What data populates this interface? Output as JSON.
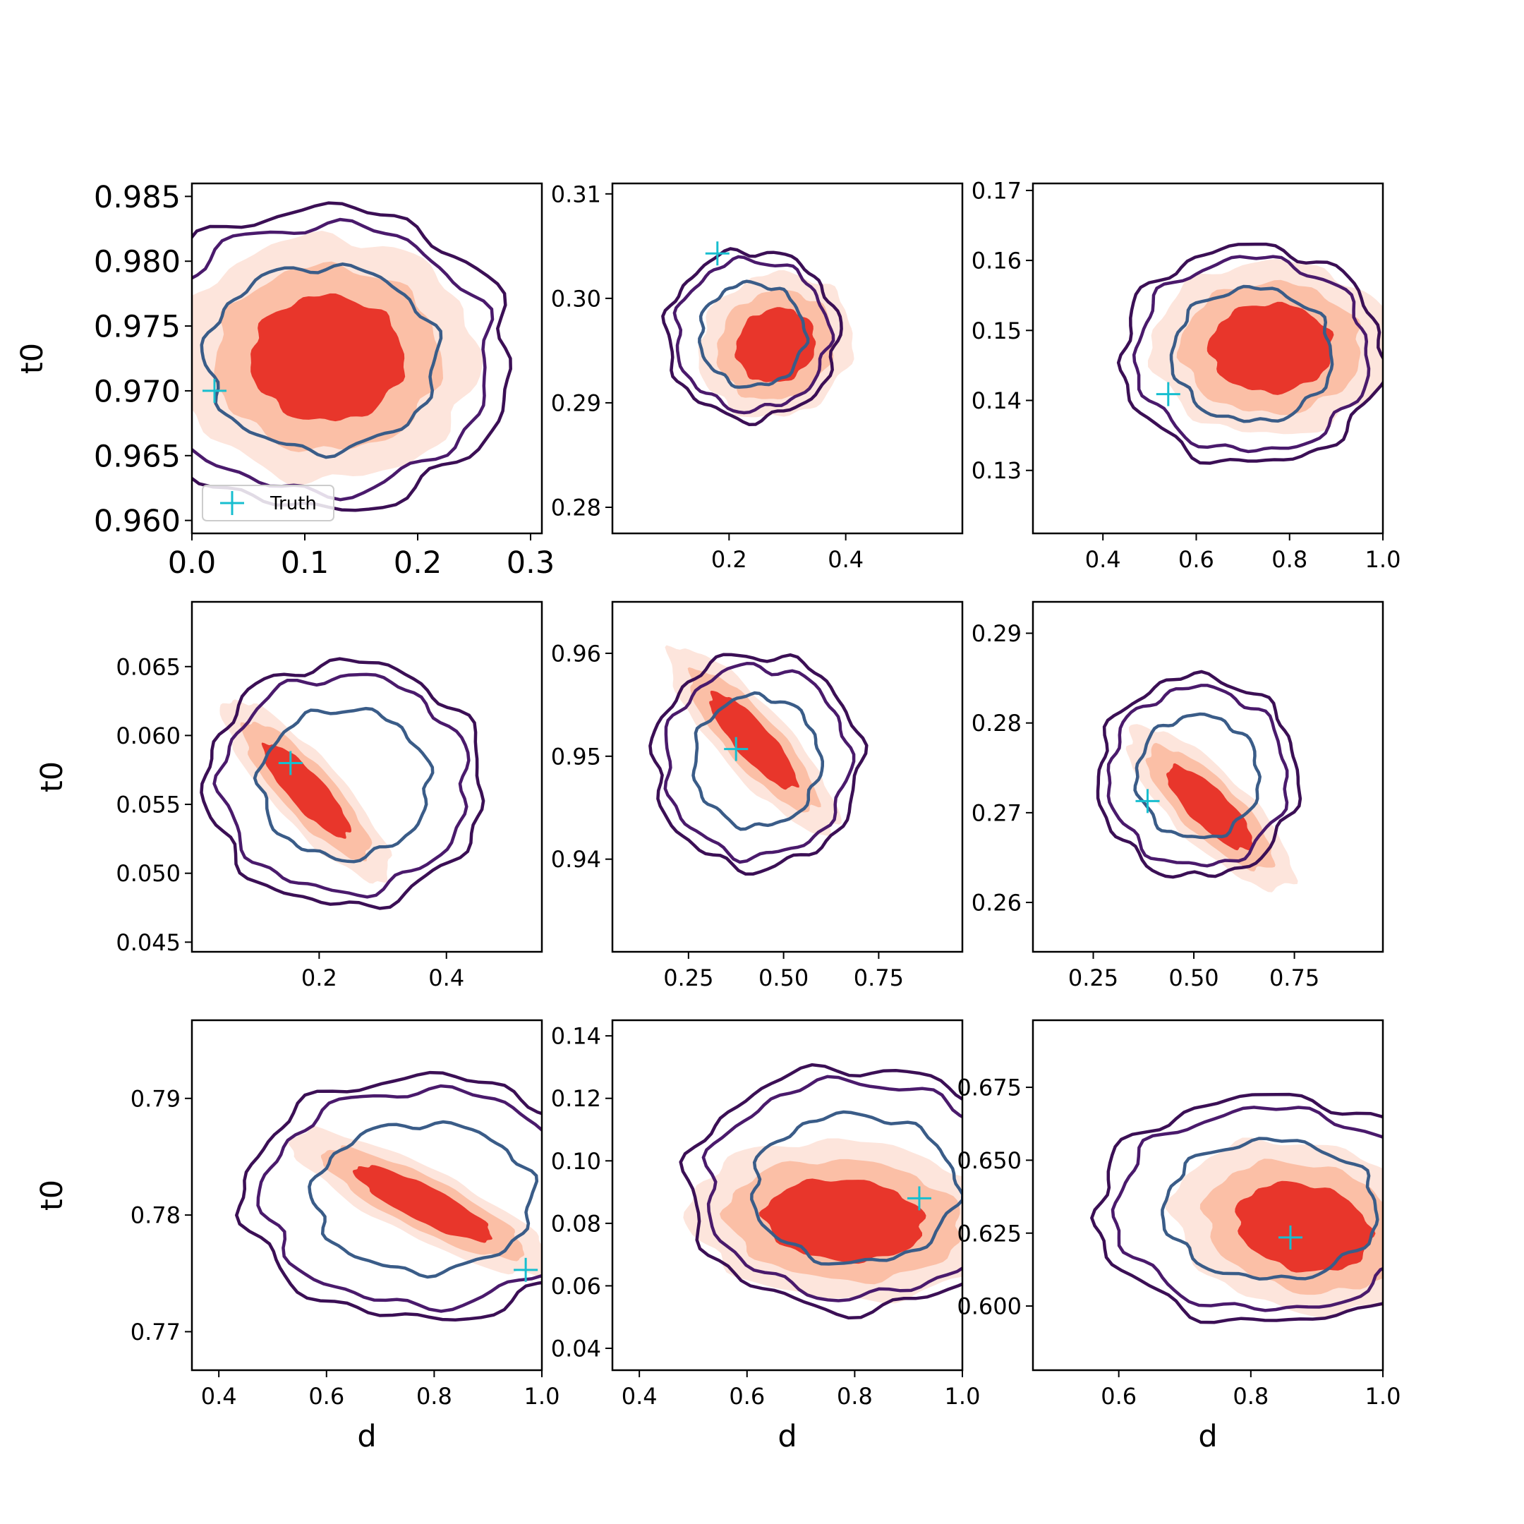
{
  "legend": {
    "label": "Truth",
    "placement": "lower-left",
    "panel": 0
  },
  "colors": {
    "fill_outer": "#fde5dc",
    "fill_mid": "#fbbfa6",
    "fill_inner": "#e8362b",
    "contour_outer": "#3b0f55",
    "contour_mid": "#4a1a6c",
    "contour_inner": "#3a5c88",
    "truth": "#17becf"
  },
  "chart_data": [
    {
      "type": "contour",
      "xlabel": "",
      "ylabel": "t0",
      "xlim": [
        0.0,
        0.31
      ],
      "ylim": [
        0.959,
        0.986
      ],
      "xticks": [
        {
          "v": 0.0,
          "t": "0.0"
        },
        {
          "v": 0.1,
          "t": "0.1"
        },
        {
          "v": 0.2,
          "t": "0.2"
        },
        {
          "v": 0.3,
          "t": "0.3"
        }
      ],
      "yticks": [
        {
          "v": 0.96,
          "t": "0.960"
        },
        {
          "v": 0.965,
          "t": "0.965"
        },
        {
          "v": 0.97,
          "t": "0.970"
        },
        {
          "v": 0.975,
          "t": "0.975"
        },
        {
          "v": 0.98,
          "t": "0.980"
        },
        {
          "v": 0.985,
          "t": "0.985"
        }
      ],
      "big_ticks": true,
      "truth": [
        0.02,
        0.97
      ],
      "fill": {
        "cx": 0.12,
        "cy": 0.9725,
        "sx": 0.08,
        "sy": 0.0057,
        "corr": 0.0
      },
      "contour": {
        "cx": 0.115,
        "cy": 0.9725,
        "sx": 0.108,
        "sy": 0.0075,
        "corr": 0.0
      }
    },
    {
      "type": "contour",
      "xlabel": "",
      "ylabel": "",
      "xlim": [
        0.0,
        0.6
      ],
      "ylim": [
        0.2775,
        0.311
      ],
      "xticks": [
        {
          "v": 0.2,
          "t": "0.2"
        },
        {
          "v": 0.4,
          "t": "0.4"
        }
      ],
      "yticks": [
        {
          "v": 0.28,
          "t": "0.28"
        },
        {
          "v": 0.29,
          "t": "0.29"
        },
        {
          "v": 0.3,
          "t": "0.30"
        },
        {
          "v": 0.31,
          "t": "0.31"
        }
      ],
      "truth": [
        0.18,
        0.3043
      ],
      "fill": {
        "cx": 0.28,
        "cy": 0.2955,
        "sx": 0.08,
        "sy": 0.0042,
        "corr": 0.1
      },
      "contour": {
        "cx": 0.24,
        "cy": 0.2965,
        "sx": 0.095,
        "sy": 0.0052,
        "corr": 0.0
      }
    },
    {
      "type": "contour",
      "xlabel": "",
      "ylabel": "",
      "xlim": [
        0.25,
        1.0
      ],
      "ylim": [
        0.121,
        0.171
      ],
      "xticks": [
        {
          "v": 0.4,
          "t": "0.4"
        },
        {
          "v": 0.6,
          "t": "0.6"
        },
        {
          "v": 0.8,
          "t": "0.8"
        },
        {
          "v": 1.0,
          "t": "1.0"
        }
      ],
      "yticks": [
        {
          "v": 0.13,
          "t": "0.13"
        },
        {
          "v": 0.14,
          "t": "0.14"
        },
        {
          "v": 0.15,
          "t": "0.15"
        },
        {
          "v": 0.16,
          "t": "0.16"
        },
        {
          "v": 0.17,
          "t": "0.17"
        }
      ],
      "truth": [
        0.54,
        0.1409
      ],
      "fill": {
        "cx": 0.76,
        "cy": 0.1475,
        "sx": 0.155,
        "sy": 0.0075,
        "corr": 0.0
      },
      "contour": {
        "cx": 0.72,
        "cy": 0.1465,
        "sx": 0.18,
        "sy": 0.01,
        "corr": 0.0
      }
    },
    {
      "type": "contour",
      "xlabel": "",
      "ylabel": "t0",
      "xlim": [
        0.0,
        0.55
      ],
      "ylim": [
        0.0443,
        0.0697
      ],
      "xticks": [
        {
          "v": 0.2,
          "t": "0.2"
        },
        {
          "v": 0.4,
          "t": "0.4"
        }
      ],
      "yticks": [
        {
          "v": 0.045,
          "t": "0.045"
        },
        {
          "v": 0.05,
          "t": "0.050"
        },
        {
          "v": 0.055,
          "t": "0.055"
        },
        {
          "v": 0.06,
          "t": "0.060"
        },
        {
          "v": 0.065,
          "t": "0.065"
        }
      ],
      "truth": [
        0.155,
        0.058
      ],
      "fill": {
        "cx": 0.18,
        "cy": 0.056,
        "sx": 0.08,
        "sy": 0.004,
        "corr": -0.85
      },
      "contour": {
        "cx": 0.24,
        "cy": 0.0565,
        "sx": 0.14,
        "sy": 0.0057,
        "corr": 0.0
      }
    },
    {
      "type": "contour",
      "xlabel": "",
      "ylabel": "",
      "xlim": [
        0.05,
        0.97
      ],
      "ylim": [
        0.931,
        0.965
      ],
      "xticks": [
        {
          "v": 0.25,
          "t": "0.25"
        },
        {
          "v": 0.5,
          "t": "0.50"
        },
        {
          "v": 0.75,
          "t": "0.75"
        }
      ],
      "yticks": [
        {
          "v": 0.94,
          "t": "0.94"
        },
        {
          "v": 0.95,
          "t": "0.95"
        },
        {
          "v": 0.96,
          "t": "0.96"
        }
      ],
      "truth": [
        0.375,
        0.9507
      ],
      "fill": {
        "cx": 0.42,
        "cy": 0.9515,
        "sx": 0.135,
        "sy": 0.0055,
        "corr": -0.85
      },
      "contour": {
        "cx": 0.43,
        "cy": 0.9495,
        "sx": 0.175,
        "sy": 0.0067,
        "corr": 0.0
      }
    },
    {
      "type": "contour",
      "xlabel": "",
      "ylabel": "",
      "xlim": [
        0.1,
        0.97
      ],
      "ylim": [
        0.2545,
        0.2935
      ],
      "xticks": [
        {
          "v": 0.25,
          "t": "0.25"
        },
        {
          "v": 0.5,
          "t": "0.50"
        },
        {
          "v": 0.75,
          "t": "0.75"
        }
      ],
      "yticks": [
        {
          "v": 0.26,
          "t": "0.26"
        },
        {
          "v": 0.27,
          "t": "0.27"
        },
        {
          "v": 0.28,
          "t": "0.28"
        },
        {
          "v": 0.29,
          "t": "0.29"
        }
      ],
      "truth": [
        0.385,
        0.2713
      ],
      "fill": {
        "cx": 0.54,
        "cy": 0.2705,
        "sx": 0.125,
        "sy": 0.0055,
        "corr": -0.8
      },
      "contour": {
        "cx": 0.51,
        "cy": 0.274,
        "sx": 0.16,
        "sy": 0.0072,
        "corr": 0.0
      }
    },
    {
      "type": "contour",
      "xlabel": "d",
      "ylabel": "t0",
      "xlim": [
        0.35,
        1.0
      ],
      "ylim": [
        0.7667,
        0.7967
      ],
      "xticks": [
        {
          "v": 0.4,
          "t": "0.4"
        },
        {
          "v": 0.6,
          "t": "0.6"
        },
        {
          "v": 0.8,
          "t": "0.8"
        },
        {
          "v": 1.0,
          "t": "1.0"
        }
      ],
      "yticks": [
        {
          "v": 0.77,
          "t": "0.77"
        },
        {
          "v": 0.78,
          "t": "0.78"
        },
        {
          "v": 0.79,
          "t": "0.79"
        }
      ],
      "truth": [
        0.97,
        0.7753
      ],
      "fill": {
        "cx": 0.78,
        "cy": 0.781,
        "sx": 0.15,
        "sy": 0.0038,
        "corr": -0.85
      },
      "contour": {
        "cx": 0.78,
        "cy": 0.7815,
        "sx": 0.215,
        "sy": 0.0067,
        "corr": 0.0
      }
    },
    {
      "type": "contour",
      "xlabel": "d",
      "ylabel": "",
      "xlim": [
        0.35,
        1.0
      ],
      "ylim": [
        0.033,
        0.145
      ],
      "xticks": [
        {
          "v": 0.4,
          "t": "0.4"
        },
        {
          "v": 0.6,
          "t": "0.6"
        },
        {
          "v": 0.8,
          "t": "0.8"
        },
        {
          "v": 1.0,
          "t": "1.0"
        }
      ],
      "yticks": [
        {
          "v": 0.04,
          "t": "0.04"
        },
        {
          "v": 0.06,
          "t": "0.06"
        },
        {
          "v": 0.08,
          "t": "0.08"
        },
        {
          "v": 0.1,
          "t": "0.10"
        },
        {
          "v": 0.12,
          "t": "0.12"
        },
        {
          "v": 0.14,
          "t": "0.14"
        }
      ],
      "truth": [
        0.92,
        0.088
      ],
      "fill": {
        "cx": 0.78,
        "cy": 0.081,
        "sx": 0.175,
        "sy": 0.0155,
        "corr": -0.1
      },
      "contour": {
        "cx": 0.8,
        "cy": 0.091,
        "sx": 0.2,
        "sy": 0.025,
        "corr": 0.0
      }
    },
    {
      "type": "contour",
      "xlabel": "d",
      "ylabel": "",
      "xlim": [
        0.47,
        1.0
      ],
      "ylim": [
        0.578,
        0.698
      ],
      "xticks": [
        {
          "v": 0.6,
          "t": "0.6"
        },
        {
          "v": 0.8,
          "t": "0.8"
        },
        {
          "v": 1.0,
          "t": "1.0"
        }
      ],
      "yticks": [
        {
          "v": 0.6,
          "t": "0.600"
        },
        {
          "v": 0.625,
          "t": "0.625"
        },
        {
          "v": 0.65,
          "t": "0.650"
        },
        {
          "v": 0.675,
          "t": "0.675"
        }
      ],
      "truth": [
        0.86,
        0.6235
      ],
      "fill": {
        "cx": 0.88,
        "cy": 0.627,
        "sx": 0.12,
        "sy": 0.018,
        "corr": -0.2
      },
      "contour": {
        "cx": 0.83,
        "cy": 0.633,
        "sx": 0.17,
        "sy": 0.025,
        "corr": 0.0
      }
    }
  ]
}
